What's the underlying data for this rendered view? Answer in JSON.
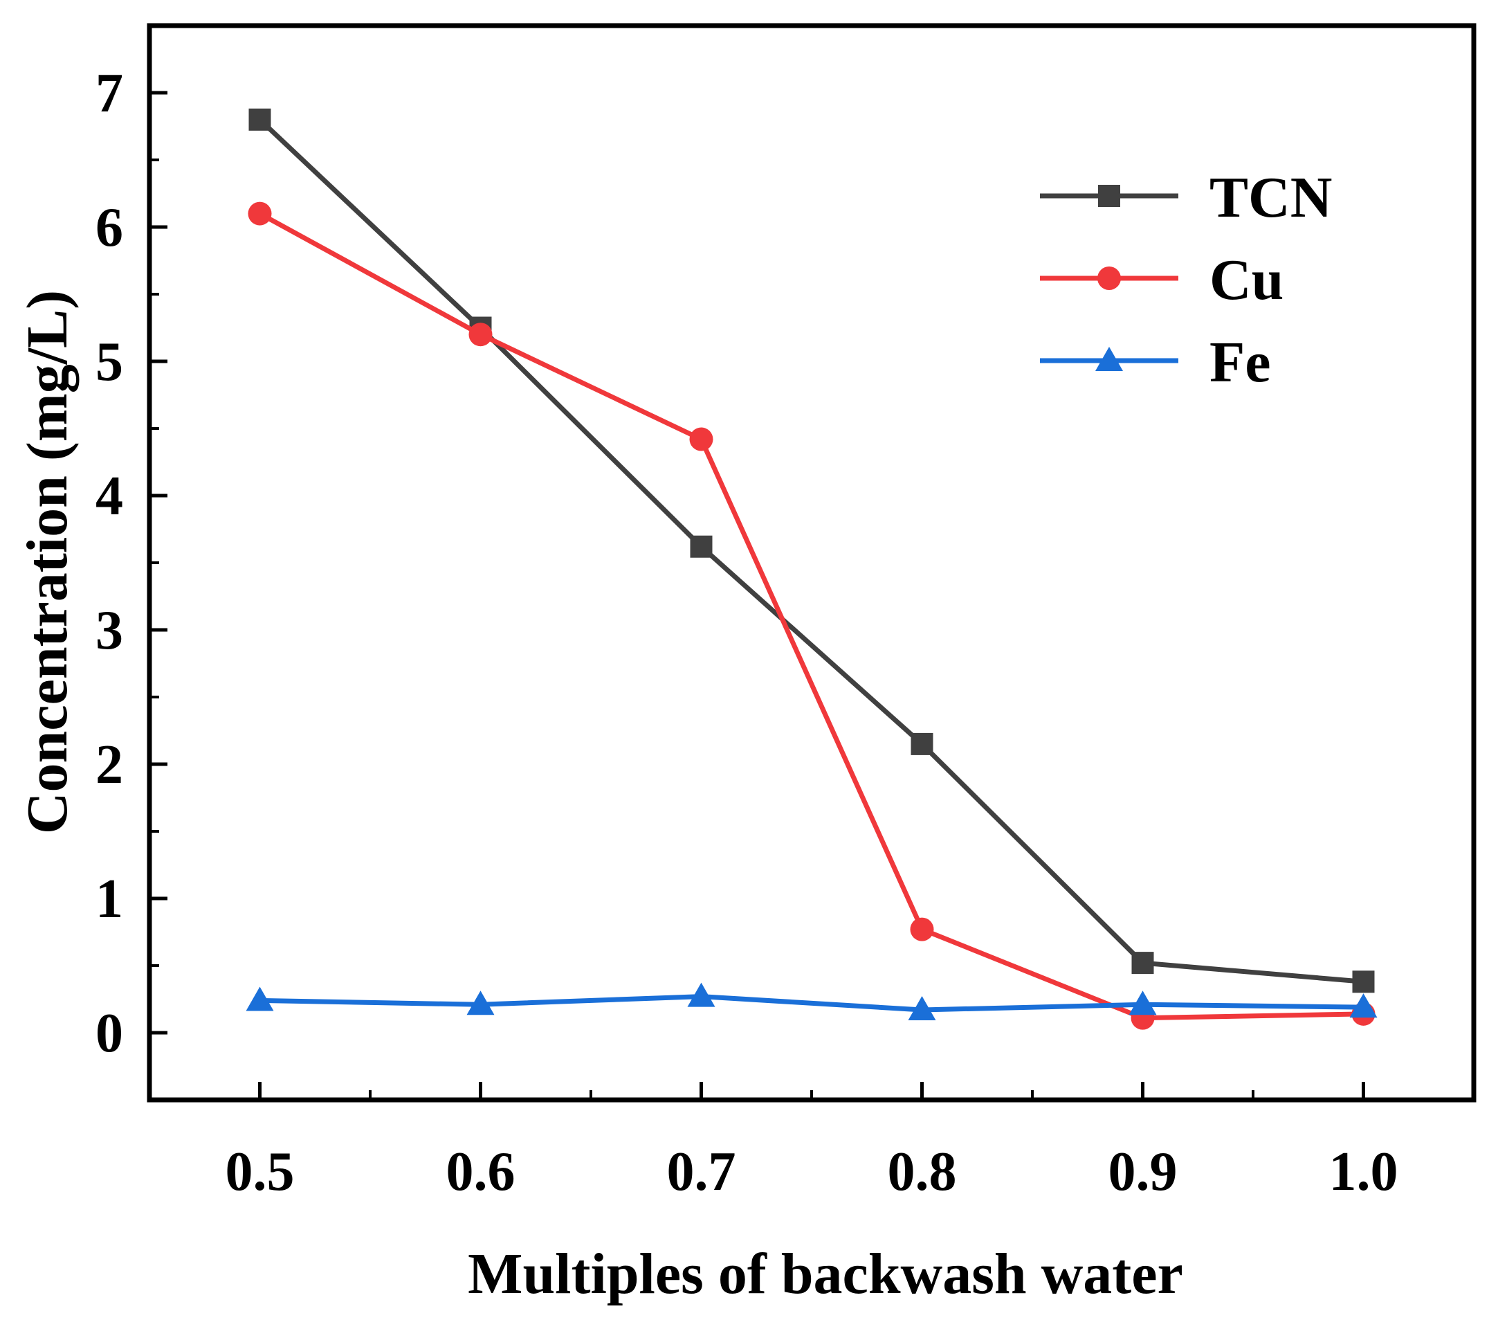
{
  "chart_data": {
    "type": "line",
    "title": "",
    "xlabel": "Multiples of backwash water",
    "ylabel": "Concentration (mg/L)",
    "x": [
      0.5,
      0.6,
      0.7,
      0.8,
      0.9,
      1.0
    ],
    "x_tick_labels": [
      "0.5",
      "0.6",
      "0.7",
      "0.8",
      "0.9",
      "1.0"
    ],
    "y_ticks": [
      0,
      1,
      2,
      3,
      4,
      5,
      6,
      7
    ],
    "y_tick_labels": [
      "0",
      "1",
      "2",
      "3",
      "4",
      "5",
      "6",
      "7"
    ],
    "xlim": [
      0.45,
      1.05
    ],
    "ylim": [
      -0.5,
      7.5
    ],
    "grid": false,
    "legend_position": "top-right",
    "series": [
      {
        "name": "TCN",
        "color": "#404040",
        "marker": "square",
        "values": [
          6.8,
          5.25,
          3.62,
          2.15,
          0.52,
          0.38
        ]
      },
      {
        "name": "Cu",
        "color": "#f0383b",
        "marker": "circle",
        "values": [
          6.1,
          5.2,
          4.42,
          0.77,
          0.11,
          0.14
        ]
      },
      {
        "name": "Fe",
        "color": "#1a6fd8",
        "marker": "triangle",
        "values": [
          0.24,
          0.21,
          0.27,
          0.17,
          0.21,
          0.19
        ]
      }
    ]
  }
}
